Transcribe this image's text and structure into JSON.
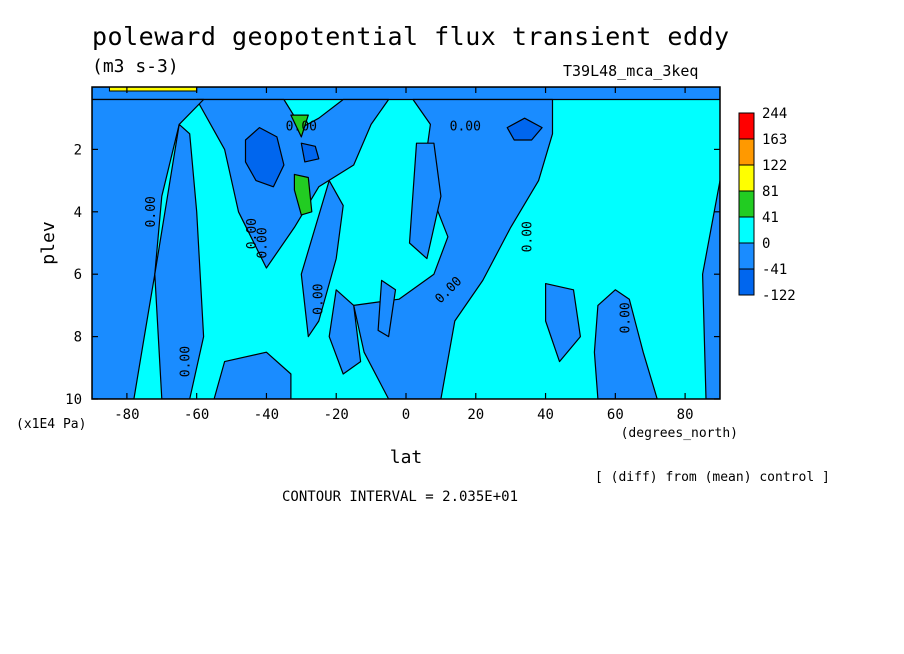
{
  "title": "poleward geopotential flux transient eddy",
  "units": "(m3 s-3)",
  "experiment": "T39L48_mca_3keq",
  "diff_note": "[ (diff) from (mean) control ]",
  "contour_interval": "CONTOUR INTERVAL = 2.035E+01",
  "chart_data": {
    "type": "heatmap",
    "title": "poleward geopotential flux transient eddy",
    "xlabel": "lat",
    "xunit": "(degrees_north)",
    "ylabel": "plev",
    "yunit": "(x1E4 Pa)",
    "xlim": [
      -90,
      90
    ],
    "ylim": [
      10,
      0
    ],
    "xticks": [
      -80,
      -60,
      -40,
      -20,
      0,
      20,
      40,
      60,
      80
    ],
    "xtick_labels": [
      "-80",
      "-60",
      "-40",
      "-20",
      "0",
      "20",
      "40",
      "60",
      "80"
    ],
    "yticks": [
      2,
      4,
      6,
      8,
      10
    ],
    "ytick_labels": [
      "2",
      "4",
      "6",
      "8",
      "10"
    ],
    "contour_labels": [
      "0.00",
      "0.00",
      "0.00",
      "0.00",
      "0.00",
      "0.00",
      "0.00",
      "0.00",
      "0.00",
      "0.00"
    ],
    "colorbar": {
      "levels": [
        "244",
        "163",
        "122",
        "81",
        "41",
        "0",
        "-41",
        "-122"
      ],
      "colors": [
        "#ff0000",
        "#ff9900",
        "#ffff00",
        "#22cc22",
        "#00ffff",
        "#1a8cff",
        "#0066ee"
      ]
    },
    "colors": {
      "background_field": "#00ffff",
      "negative": "#1a8cff",
      "strong_negative": "#0066ee",
      "positive": "#22cc22",
      "strong_positive": "#ffff00"
    },
    "regions": [
      {
        "sign": "negative",
        "points": [
          [
            -90,
            0
          ],
          [
            90,
            0
          ],
          [
            90,
            0.4
          ],
          [
            -90,
            0.4
          ]
        ]
      },
      {
        "sign": "negative",
        "points": [
          [
            -60,
            0.4
          ],
          [
            -35,
            0.4
          ],
          [
            -30,
            1.3
          ],
          [
            -25,
            1.0
          ],
          [
            -18,
            0.4
          ],
          [
            -5,
            0.4
          ],
          [
            -10,
            1.2
          ],
          [
            -15,
            2.5
          ],
          [
            -25,
            3.2
          ],
          [
            -32,
            4.5
          ],
          [
            -40,
            5.8
          ],
          [
            -48,
            4.0
          ],
          [
            -52,
            2.0
          ]
        ]
      },
      {
        "sign": "negative",
        "points": [
          [
            2,
            0.4
          ],
          [
            42,
            0.4
          ],
          [
            42,
            1.5
          ],
          [
            38,
            3.0
          ],
          [
            30,
            4.5
          ],
          [
            22,
            6.2
          ],
          [
            14,
            7.5
          ],
          [
            10,
            10
          ],
          [
            -5,
            10
          ],
          [
            -12,
            8.5
          ],
          [
            -15,
            7.0
          ],
          [
            -2,
            6.8
          ],
          [
            8,
            6.0
          ],
          [
            12,
            4.8
          ],
          [
            5,
            2.8
          ],
          [
            7,
            1.2
          ]
        ]
      },
      {
        "sign": "negative",
        "points": [
          [
            -90,
            0.4
          ],
          [
            -58,
            0.4
          ],
          [
            -65,
            1.2
          ],
          [
            -70,
            3.5
          ],
          [
            -72,
            6.0
          ],
          [
            -75,
            8.0
          ],
          [
            -78,
            10
          ],
          [
            -90,
            10
          ]
        ]
      },
      {
        "sign": "negative",
        "points": [
          [
            -65,
            1.2
          ],
          [
            -62,
            1.5
          ],
          [
            -60,
            4
          ],
          [
            -58,
            8
          ],
          [
            -62,
            10
          ],
          [
            -70,
            10
          ],
          [
            -72,
            6
          ]
        ]
      },
      {
        "sign": "negative",
        "points": [
          [
            -52,
            8.8
          ],
          [
            -40,
            8.5
          ],
          [
            -33,
            9.2
          ],
          [
            -33,
            10
          ],
          [
            -55,
            10
          ]
        ]
      },
      {
        "sign": "negative",
        "points": [
          [
            -22,
            3.0
          ],
          [
            -18,
            3.8
          ],
          [
            -20,
            5.5
          ],
          [
            -25,
            7.5
          ],
          [
            -28,
            8.0
          ],
          [
            -30,
            6.0
          ]
        ]
      },
      {
        "sign": "negative",
        "points": [
          [
            -20,
            6.5
          ],
          [
            -15,
            7.0
          ],
          [
            -13,
            8.8
          ],
          [
            -18,
            9.2
          ],
          [
            -22,
            8.0
          ]
        ]
      },
      {
        "sign": "negative",
        "points": [
          [
            3,
            1.8
          ],
          [
            8,
            1.8
          ],
          [
            10,
            3.5
          ],
          [
            6,
            5.5
          ],
          [
            1,
            5.0
          ]
        ]
      },
      {
        "sign": "negative",
        "points": [
          [
            -7,
            6.2
          ],
          [
            -3,
            6.5
          ],
          [
            -5,
            8.0
          ],
          [
            -8,
            7.8
          ]
        ]
      },
      {
        "sign": "negative",
        "points": [
          [
            40,
            6.3
          ],
          [
            48,
            6.5
          ],
          [
            50,
            8.0
          ],
          [
            44,
            8.8
          ],
          [
            40,
            7.5
          ]
        ]
      },
      {
        "sign": "negative",
        "points": [
          [
            55,
            7.0
          ],
          [
            60,
            6.5
          ],
          [
            64,
            6.8
          ],
          [
            68,
            8.5
          ],
          [
            72,
            10
          ],
          [
            55,
            10
          ],
          [
            54,
            8.5
          ]
        ]
      },
      {
        "sign": "negative",
        "points": [
          [
            85,
            6
          ],
          [
            90,
            3
          ],
          [
            90,
            10
          ],
          [
            86,
            10
          ]
        ]
      },
      {
        "sign": "strong_negative",
        "points": [
          [
            -46,
            1.7
          ],
          [
            -42,
            1.3
          ],
          [
            -37,
            1.6
          ],
          [
            -35,
            2.5
          ],
          [
            -38,
            3.2
          ],
          [
            -43,
            3.0
          ],
          [
            -46,
            2.4
          ]
        ]
      },
      {
        "sign": "strong_negative",
        "points": [
          [
            -30,
            1.8
          ],
          [
            -26,
            1.9
          ],
          [
            -25,
            2.3
          ],
          [
            -29,
            2.4
          ]
        ]
      },
      {
        "sign": "strong_negative",
        "points": [
          [
            29,
            1.3
          ],
          [
            34,
            1.0
          ],
          [
            39,
            1.3
          ],
          [
            36,
            1.7
          ],
          [
            31,
            1.7
          ]
        ]
      },
      {
        "sign": "positive",
        "points": [
          [
            -33,
            0.9
          ],
          [
            -28,
            0.9
          ],
          [
            -30,
            1.6
          ]
        ]
      },
      {
        "sign": "positive",
        "points": [
          [
            -32,
            2.8
          ],
          [
            -28,
            2.9
          ],
          [
            -27,
            4.0
          ],
          [
            -30,
            4.1
          ],
          [
            -32,
            3.3
          ]
        ]
      }
    ]
  }
}
